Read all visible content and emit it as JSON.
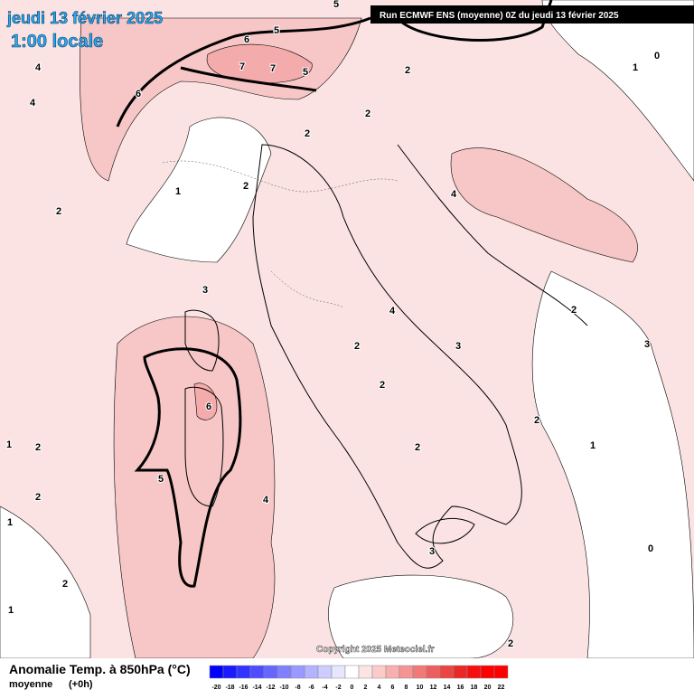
{
  "header": {
    "date": "jeudi 13 février 2025",
    "time": "1:00 locale",
    "run": "Run ECMWF ENS (moyenne) 0Z du jeudi 13 février 2025"
  },
  "legend": {
    "title": "Anomalie Temp. à 850hPa (°C)",
    "subtitle": "moyenne",
    "step": "(+0h)",
    "ticks": [
      -20,
      -18,
      -16,
      -14,
      -12,
      -10,
      -8,
      -6,
      -4,
      -2,
      0,
      2,
      4,
      6,
      8,
      10,
      12,
      14,
      16,
      18,
      20,
      22
    ],
    "colors": [
      "#0000ff",
      "#1a1aff",
      "#3333ff",
      "#4d4dff",
      "#6666ff",
      "#8080ff",
      "#9999ff",
      "#b3b3ff",
      "#ccccff",
      "#e6e6ff",
      "#ffffff",
      "#fde4e4",
      "#fbcaca",
      "#f8afaf",
      "#f59494",
      "#f27979",
      "#ef5e5e",
      "#ec4343",
      "#e92828",
      "#f51010",
      "#ff0000",
      "#ff0000"
    ]
  },
  "copyright": "Copyright 2025 Meteociel.fr",
  "contour_labels": [
    5,
    6,
    5,
    7,
    7,
    5,
    6,
    4,
    4,
    2,
    2,
    2,
    1,
    2,
    2,
    4,
    3,
    4,
    3,
    2,
    2,
    3,
    2,
    2,
    6,
    5,
    4,
    2,
    2,
    1,
    1,
    0,
    1,
    3,
    2,
    0,
    1,
    1,
    2,
    2
  ]
}
